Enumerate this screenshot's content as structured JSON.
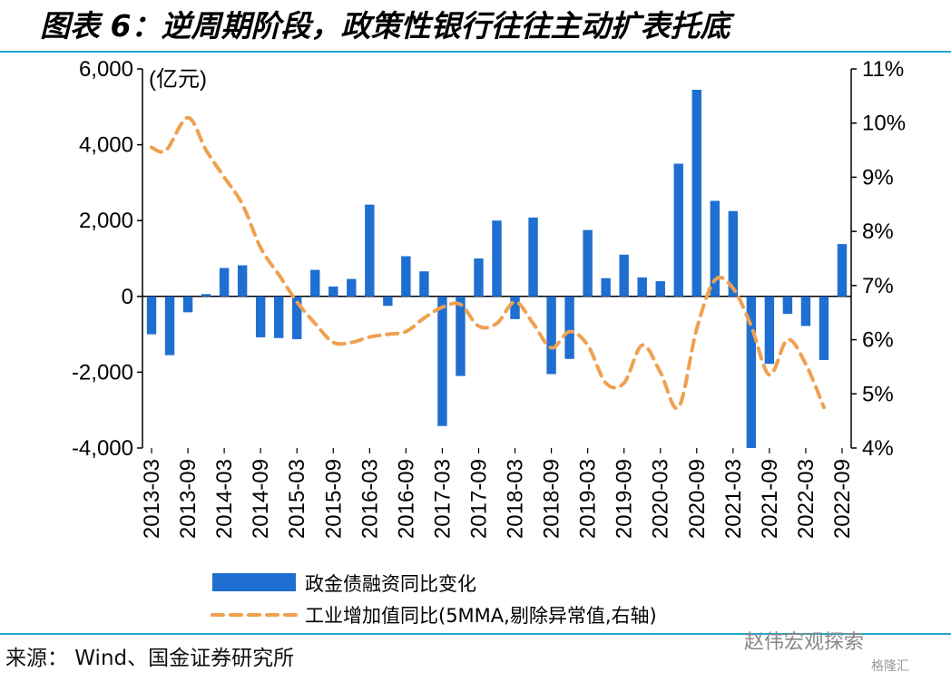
{
  "title": "图表 6：逆周期阶段，政策性银行往往主动扩表托底",
  "source": "来源：  Wind、国金证券研究所",
  "watermark": "赵伟宏观探索",
  "logo_text": "格隆汇",
  "colors": {
    "bar": "#1f6fd1",
    "line": "#f0a050",
    "rule": "#1fa7c9"
  },
  "chart_data": {
    "type": "bar",
    "left_unit": "(亿元)",
    "left_ylim": [
      -4000,
      6000
    ],
    "left_ticks": [
      "-4,000",
      "-2,000",
      "0",
      "2,000",
      "4,000",
      "6,000"
    ],
    "right_ylim": [
      4,
      11
    ],
    "right_ticks": [
      "4%",
      "5%",
      "6%",
      "7%",
      "8%",
      "9%",
      "10%",
      "11%"
    ],
    "x_tick_labels": [
      "2013-03",
      "2013-09",
      "2014-03",
      "2014-09",
      "2015-03",
      "2015-09",
      "2016-03",
      "2016-09",
      "2017-03",
      "2017-09",
      "2018-03",
      "2018-09",
      "2019-03",
      "2019-09",
      "2020-03",
      "2020-09",
      "2021-03",
      "2021-09",
      "2022-03",
      "2022-09"
    ],
    "legend_bar": "政金债融资同比变化",
    "legend_line": "工业增加值同比(5MMA,剔除异常值,右轴)",
    "bars": {
      "name": "政金债融资同比变化",
      "categories": [
        "2013-03",
        "2013-06",
        "2013-09",
        "2013-12",
        "2014-03",
        "2014-06",
        "2014-09",
        "2014-12",
        "2015-03",
        "2015-06",
        "2015-09",
        "2015-12",
        "2016-03",
        "2016-06",
        "2016-09",
        "2016-12",
        "2017-03",
        "2017-06",
        "2017-09",
        "2017-12",
        "2018-03",
        "2018-06",
        "2018-09",
        "2018-12",
        "2019-03",
        "2019-06",
        "2019-09",
        "2019-12",
        "2020-03",
        "2020-06",
        "2020-09",
        "2020-12",
        "2021-03",
        "2021-06",
        "2021-09",
        "2021-12",
        "2022-03",
        "2022-06",
        "2022-09"
      ],
      "values": [
        -1000,
        -1550,
        -420,
        60,
        750,
        820,
        -1080,
        -1100,
        -1130,
        700,
        260,
        460,
        2420,
        -250,
        1060,
        660,
        -3420,
        -2100,
        1000,
        2000,
        -600,
        2080,
        -2050,
        -1650,
        1750,
        480,
        1100,
        500,
        400,
        3500,
        5450,
        2520,
        2250,
        -4000,
        -1780,
        -460,
        -780,
        -1680,
        1380
      ]
    },
    "line": {
      "name": "工业增加值同比(5MMA,剔除异常值,右轴)",
      "points": [
        [
          0,
          9.55
        ],
        [
          0.8,
          9.5
        ],
        [
          2,
          10.1
        ],
        [
          3,
          9.5
        ],
        [
          4,
          9.0
        ],
        [
          5,
          8.5
        ],
        [
          6,
          7.7
        ],
        [
          7,
          7.2
        ],
        [
          8,
          6.7
        ],
        [
          9,
          6.3
        ],
        [
          10,
          5.95
        ],
        [
          11,
          5.95
        ],
        [
          12,
          6.05
        ],
        [
          13,
          6.1
        ],
        [
          14,
          6.15
        ],
        [
          15,
          6.4
        ],
        [
          16,
          6.6
        ],
        [
          17,
          6.65
        ],
        [
          18,
          6.25
        ],
        [
          19,
          6.3
        ],
        [
          20,
          6.7
        ],
        [
          21,
          6.3
        ],
        [
          22,
          5.85
        ],
        [
          23,
          6.15
        ],
        [
          24,
          5.9
        ],
        [
          25,
          5.2
        ],
        [
          26,
          5.2
        ],
        [
          27,
          5.9
        ],
        [
          28,
          5.4
        ],
        [
          29,
          4.75
        ],
        [
          30,
          6.2
        ],
        [
          31,
          7.1
        ],
        [
          32,
          6.95
        ],
        [
          33,
          6.25
        ],
        [
          34,
          5.35
        ],
        [
          35,
          6.0
        ],
        [
          36,
          5.55
        ],
        [
          37,
          4.75
        ]
      ]
    }
  }
}
